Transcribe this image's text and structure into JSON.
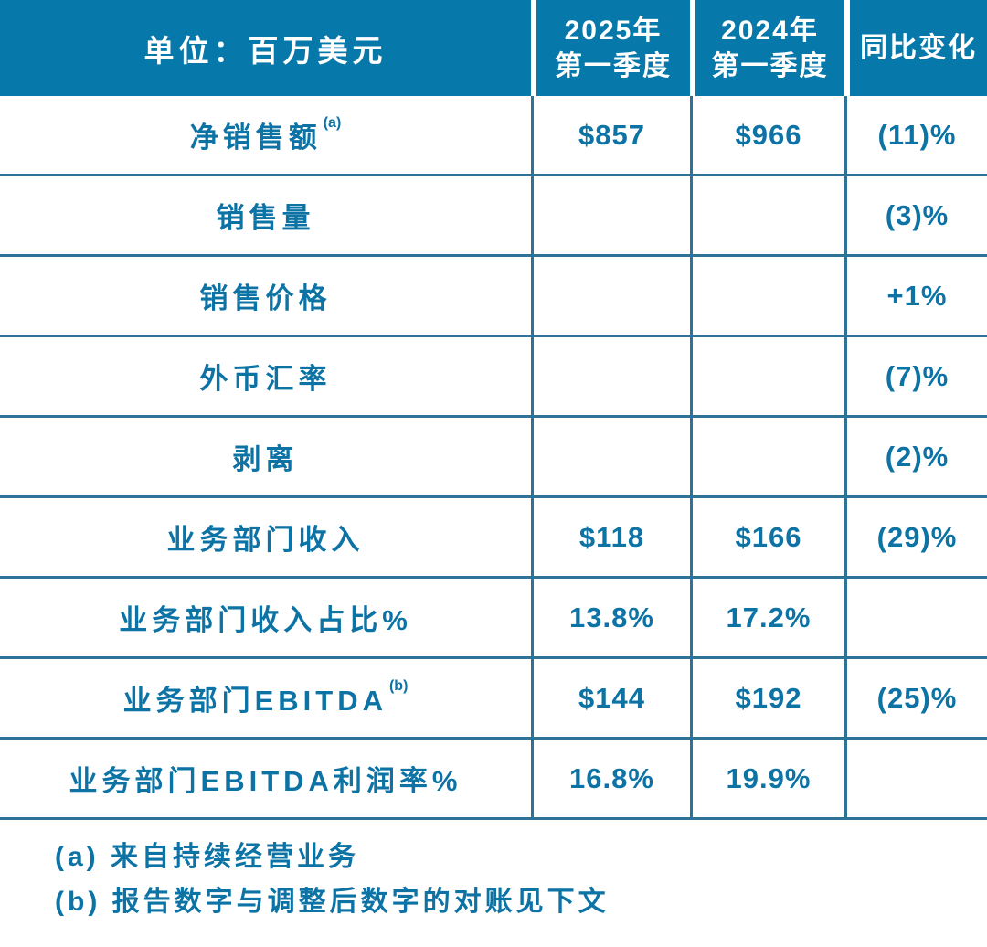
{
  "chart_data": {
    "type": "table",
    "title": "单位：百万美元",
    "unit_header": "单位：百万美元",
    "col_headers": [
      {
        "line1": "2025年",
        "line2": "第一季度"
      },
      {
        "line1": "2024年",
        "line2": "第一季度"
      },
      {
        "line1": "同比变化",
        "line2": ""
      }
    ],
    "rows": [
      {
        "label": "净销售额",
        "sup": "(a)",
        "v2025": "$857",
        "v2024": "$966",
        "yoy": "(11)%"
      },
      {
        "label": "销售量",
        "sup": "",
        "v2025": "",
        "v2024": "",
        "yoy": "(3)%"
      },
      {
        "label": "销售价格",
        "sup": "",
        "v2025": "",
        "v2024": "",
        "yoy": "+1%"
      },
      {
        "label": "外币汇率",
        "sup": "",
        "v2025": "",
        "v2024": "",
        "yoy": "(7)%"
      },
      {
        "label": "剥离",
        "sup": "",
        "v2025": "",
        "v2024": "",
        "yoy": "(2)%"
      },
      {
        "label": "业务部门收入",
        "sup": "",
        "v2025": "$118",
        "v2024": "$166",
        "yoy": "(29)%"
      },
      {
        "label": "业务部门收入占比%",
        "sup": "",
        "v2025": "13.8%",
        "v2024": "17.2%",
        "yoy": ""
      },
      {
        "label": "业务部门EBITDA",
        "sup": "(b)",
        "v2025": "$144",
        "v2024": "$192",
        "yoy": "(25)%"
      },
      {
        "label": "业务部门EBITDA利润率%",
        "sup": "",
        "v2025": "16.8%",
        "v2024": "19.9%",
        "yoy": ""
      }
    ],
    "footnotes": [
      "(a) 来自持续经营业务",
      "(b) 报告数字与调整后数字的对账见下文"
    ]
  },
  "colors": {
    "header_bg": "#0678aa",
    "header_text": "#ffffff",
    "body_text": "#0d73a5",
    "grid_line": "#2e7397"
  }
}
